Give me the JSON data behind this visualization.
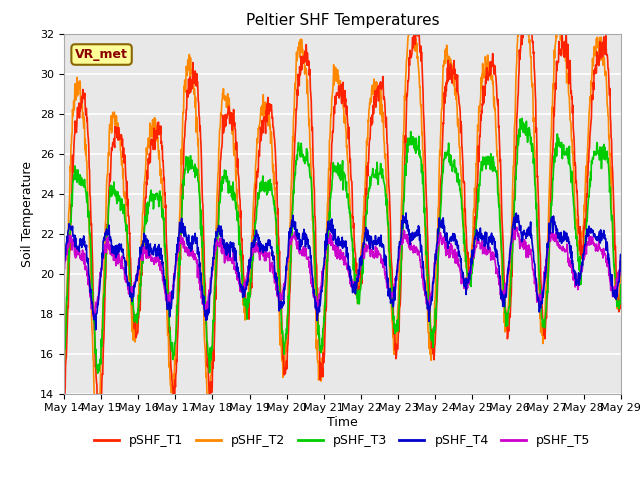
{
  "title": "Peltier SHF Temperatures",
  "xlabel": "Time",
  "ylabel": "Soil Temperature",
  "ylim": [
    14,
    32
  ],
  "x_tick_labels": [
    "May 14",
    "May 15",
    "May 16",
    "May 17",
    "May 18",
    "May 19",
    "May 20",
    "May 21",
    "May 22",
    "May 23",
    "May 24",
    "May 25",
    "May 26",
    "May 27",
    "May 28",
    "May 29"
  ],
  "yticks": [
    14,
    16,
    18,
    20,
    22,
    24,
    26,
    28,
    30,
    32
  ],
  "series_colors": {
    "pSHF_T1": "#ff2200",
    "pSHF_T2": "#ff8800",
    "pSHF_T3": "#00cc00",
    "pSHF_T4": "#0000cc",
    "pSHF_T5": "#cc00cc"
  },
  "annotation_text": "VR_met",
  "annotation_color": "#880000",
  "annotation_bg": "#ffff99",
  "annotation_border": "#886600",
  "plot_bg": "#e8e8e8",
  "title_fontsize": 11,
  "axis_fontsize": 9,
  "tick_fontsize": 8,
  "legend_fontsize": 9,
  "linewidth": 1.2
}
